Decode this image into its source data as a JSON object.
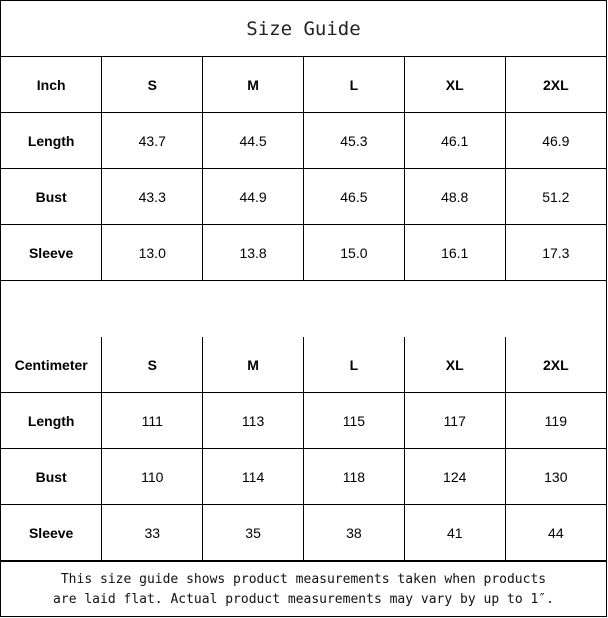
{
  "title": "Size Guide",
  "inch": {
    "header": [
      "Inch",
      "S",
      "M",
      "L",
      "XL",
      "2XL"
    ],
    "rows": [
      [
        "Length",
        "43.7",
        "44.5",
        "45.3",
        "46.1",
        "46.9"
      ],
      [
        "Bust",
        "43.3",
        "44.9",
        "46.5",
        "48.8",
        "51.2"
      ],
      [
        "Sleeve",
        "13.0",
        "13.8",
        "15.0",
        "16.1",
        "17.3"
      ]
    ]
  },
  "centimeter": {
    "header": [
      "Centimeter",
      "S",
      "M",
      "L",
      "XL",
      "2XL"
    ],
    "rows": [
      [
        "Length",
        "111",
        "113",
        "115",
        "117",
        "119"
      ],
      [
        "Bust",
        "110",
        "114",
        "118",
        "124",
        "130"
      ],
      [
        "Sleeve",
        "33",
        "35",
        "38",
        "41",
        "44"
      ]
    ]
  },
  "note": {
    "line1": "This size guide shows product measurements taken when products",
    "line2": "are laid flat. Actual product measurements may vary by up to 1″."
  }
}
